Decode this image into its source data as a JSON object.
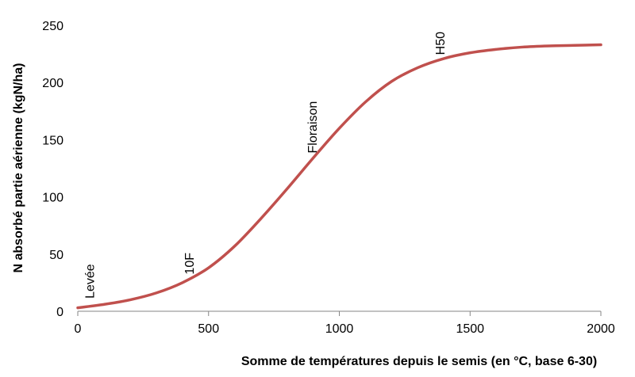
{
  "chart_data": {
    "type": "line",
    "title": "",
    "xlabel": "Somme de températures depuis le semis (en °C, base 6-30)",
    "ylabel": "N absorbé partie aérienne (kgN/ha)",
    "xlim": [
      0,
      2000
    ],
    "ylim": [
      0,
      250
    ],
    "xticks": [
      0,
      500,
      1000,
      1500,
      2000
    ],
    "yticks": [
      0,
      50,
      100,
      150,
      200,
      250
    ],
    "grid": false,
    "legend": "none",
    "series": [
      {
        "color": "#C0504D",
        "x": [
          0,
          100,
          200,
          300,
          400,
          500,
          600,
          700,
          800,
          900,
          1000,
          1100,
          1200,
          1300,
          1400,
          1500,
          1600,
          1700,
          1800,
          1900,
          2000
        ],
        "y": [
          3,
          6,
          10,
          16,
          25,
          38,
          57,
          81,
          107,
          134,
          160,
          183,
          201,
          213,
          221,
          226,
          229,
          231,
          232,
          232.5,
          233
        ]
      }
    ],
    "annotations": [
      {
        "text": "Levée",
        "x": 50,
        "y": 7
      },
      {
        "text": "10F",
        "x": 430,
        "y": 28
      },
      {
        "text": "Floraison",
        "x": 900,
        "y": 134
      },
      {
        "text": "H50",
        "x": 1390,
        "y": 220
      }
    ]
  }
}
